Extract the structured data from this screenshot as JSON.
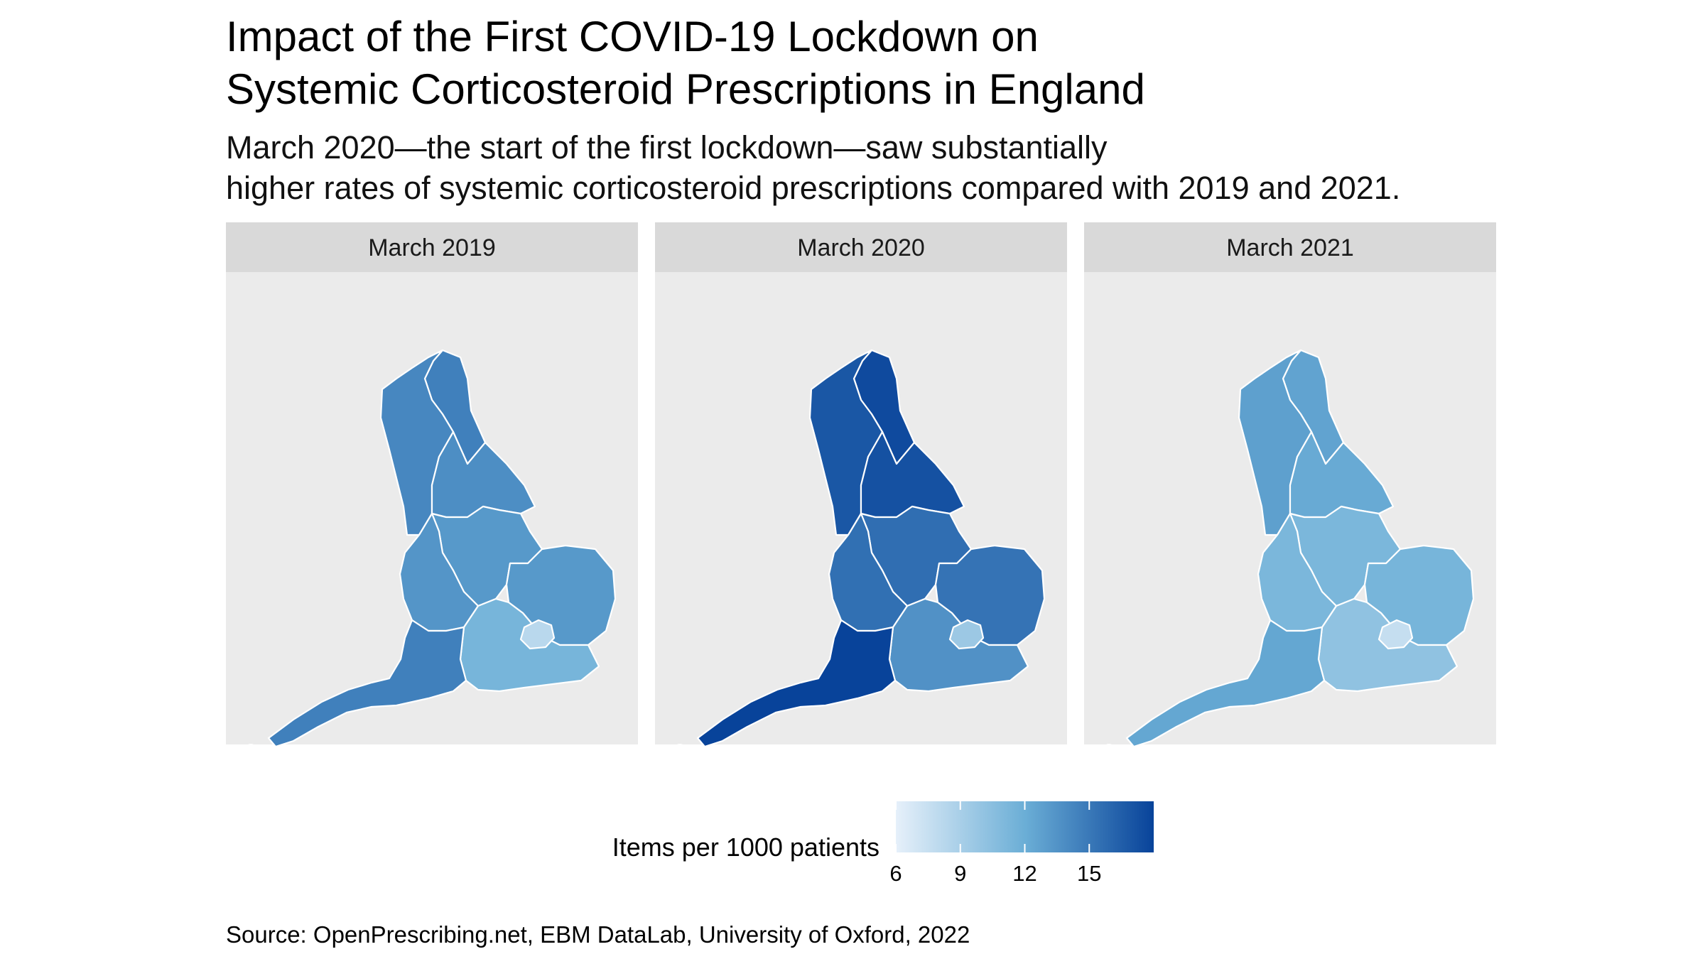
{
  "title_line1": "Impact of the First COVID-19 Lockdown on",
  "title_line2": "Systemic Corticosteroid Prescriptions in England",
  "subtitle_line1": "March 2020—the start of the first lockdown—saw substantially",
  "subtitle_line2": "higher rates of systemic corticosteroid prescriptions compared with 2019 and 2021.",
  "caption": "Source: OpenPrescribing.net, EBM DataLab, University of Oxford, 2022",
  "legend": {
    "title": "Items per 1000 patients",
    "ticks": [
      "6",
      "9",
      "12",
      "15"
    ],
    "tick_values": [
      6,
      9,
      12,
      15
    ],
    "range": [
      6,
      18
    ],
    "color_low": "#e6f0fa",
    "color_high": "#08439a"
  },
  "panels": [
    {
      "label": "March 2019",
      "values": {
        "north_east": 14.6,
        "north_west": 14.2,
        "yorkshire": 13.8,
        "east_midlands": 13.2,
        "west_midlands": 13.4,
        "east": 13.2,
        "london": 8.2,
        "south_east": 11.4,
        "south_west": 14.6
      }
    },
    {
      "label": "March 2020",
      "values": {
        "north_east": 17.6,
        "north_west": 16.9,
        "yorkshire": 17.2,
        "east_midlands": 15.6,
        "west_midlands": 15.5,
        "east": 15.3,
        "london": 9.6,
        "south_east": 13.6,
        "south_west": 18.0
      }
    },
    {
      "label": "March 2021",
      "values": {
        "north_east": 12.6,
        "north_west": 12.8,
        "yorkshire": 12.2,
        "east_midlands": 11.2,
        "west_midlands": 11.2,
        "east": 11.4,
        "london": 7.6,
        "south_east": 10.2,
        "south_west": 12.4
      }
    }
  ],
  "colors": {
    "panel_bg": "#ebebeb",
    "strip_bg": "#d9d9d9",
    "region_border": "#ffffff"
  }
}
